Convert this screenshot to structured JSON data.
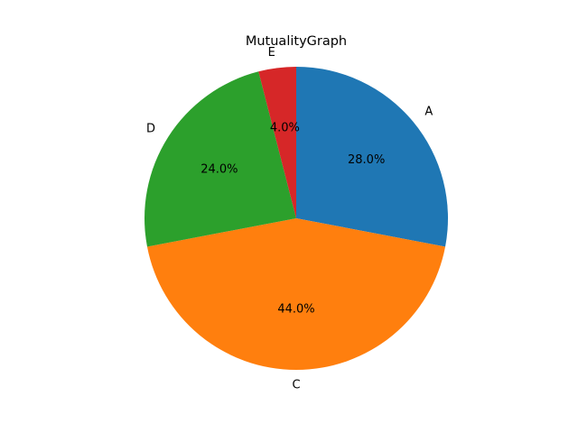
{
  "chart_data": {
    "type": "pie",
    "title": "MutualityGraph",
    "categories": [
      "A",
      "C",
      "D",
      "E"
    ],
    "values": [
      28.0,
      44.0,
      24.0,
      4.0
    ],
    "percent_labels": [
      "28.0%",
      "44.0%",
      "24.0%",
      "4.0%"
    ],
    "colors": [
      "#1f77b4",
      "#ff7f0e",
      "#2ca02c",
      "#d62728"
    ],
    "start_angle": 90,
    "direction": "clockwise",
    "legend": "none"
  }
}
